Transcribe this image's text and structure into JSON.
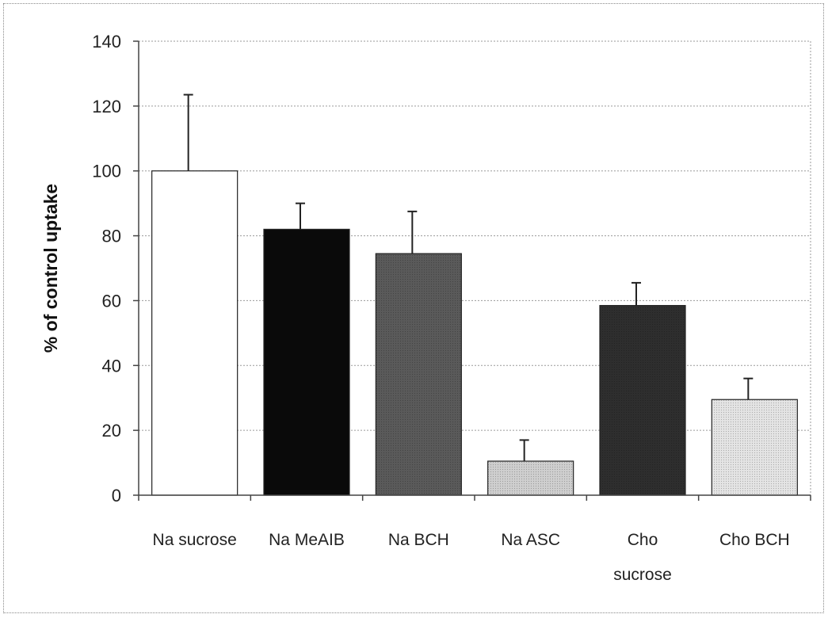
{
  "chart_data": {
    "type": "bar",
    "title": "",
    "xlabel": "",
    "ylabel": "% of control uptake",
    "ylim": [
      0,
      140
    ],
    "yticks": [
      0,
      20,
      40,
      60,
      80,
      100,
      120,
      140
    ],
    "grid": true,
    "categories": [
      [
        "Na sucrose"
      ],
      [
        "Na MeAIB"
      ],
      [
        "Na BCH"
      ],
      [
        "Na ASC"
      ],
      [
        "Cho",
        "sucrose"
      ],
      [
        "Cho BCH"
      ]
    ],
    "values": [
      100,
      82,
      74.5,
      10.5,
      58.5,
      29.5
    ],
    "error": [
      23.5,
      8,
      13,
      6.5,
      7,
      6.5
    ],
    "bar_colors": [
      "#ffffff",
      "#0a0a0a",
      "#5a5a5a",
      "#cfcfcf",
      "#2e2e2e",
      "#e4e4e4"
    ]
  }
}
